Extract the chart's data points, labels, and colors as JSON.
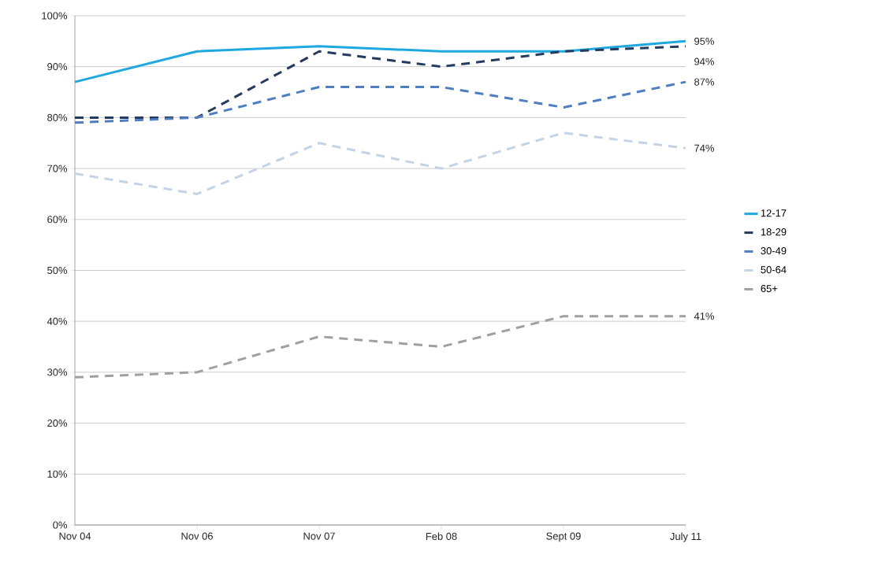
{
  "chart_data": {
    "type": "line",
    "categories": [
      "Nov 04",
      "Nov 06",
      "Nov 07",
      "Feb 08",
      "Sept 09",
      "July 11"
    ],
    "series": [
      {
        "name": "12-17",
        "color": "#1fa8e0",
        "line_style": "solid",
        "values": [
          87,
          93,
          94,
          93,
          93,
          95
        ],
        "value_labels": [
          null,
          null,
          null,
          null,
          null,
          "95%"
        ]
      },
      {
        "name": "18-29",
        "color": "#243a5e",
        "line_style": "dashed",
        "values": [
          80,
          80,
          93,
          90,
          93,
          94
        ],
        "value_labels": [
          null,
          null,
          null,
          null,
          null,
          "94%"
        ]
      },
      {
        "name": "30-49",
        "color": "#4f7fc0",
        "line_style": "dashed",
        "values": [
          79,
          80,
          86,
          86,
          82,
          87
        ],
        "value_labels": [
          null,
          null,
          null,
          null,
          null,
          "87%"
        ]
      },
      {
        "name": "50-64",
        "color": "#c4d3e6",
        "line_style": "dashed",
        "values": [
          69,
          65,
          75,
          70,
          77,
          74
        ],
        "value_labels": [
          null,
          null,
          null,
          null,
          null,
          "74%"
        ]
      },
      {
        "name": "65+",
        "color": "#a0a0a0",
        "line_style": "dashed",
        "values": [
          29,
          30,
          37,
          35,
          41,
          41
        ],
        "value_labels": [
          null,
          null,
          null,
          null,
          null,
          "41%"
        ]
      }
    ],
    "ylim": [
      0,
      100
    ],
    "yticks": [
      {
        "value": 0,
        "label": "0%"
      },
      {
        "value": 10,
        "label": "10%"
      },
      {
        "value": 20,
        "label": "20%"
      },
      {
        "value": 30,
        "label": "30%"
      },
      {
        "value": 40,
        "label": "40%"
      },
      {
        "value": 50,
        "label": "50%"
      },
      {
        "value": 60,
        "label": "60%"
      },
      {
        "value": 70,
        "label": "70%"
      },
      {
        "value": 80,
        "label": "80%"
      },
      {
        "value": 90,
        "label": "90%"
      },
      {
        "value": 100,
        "label": "100%"
      }
    ],
    "grid": "y",
    "legend": "right",
    "marker": "none"
  }
}
